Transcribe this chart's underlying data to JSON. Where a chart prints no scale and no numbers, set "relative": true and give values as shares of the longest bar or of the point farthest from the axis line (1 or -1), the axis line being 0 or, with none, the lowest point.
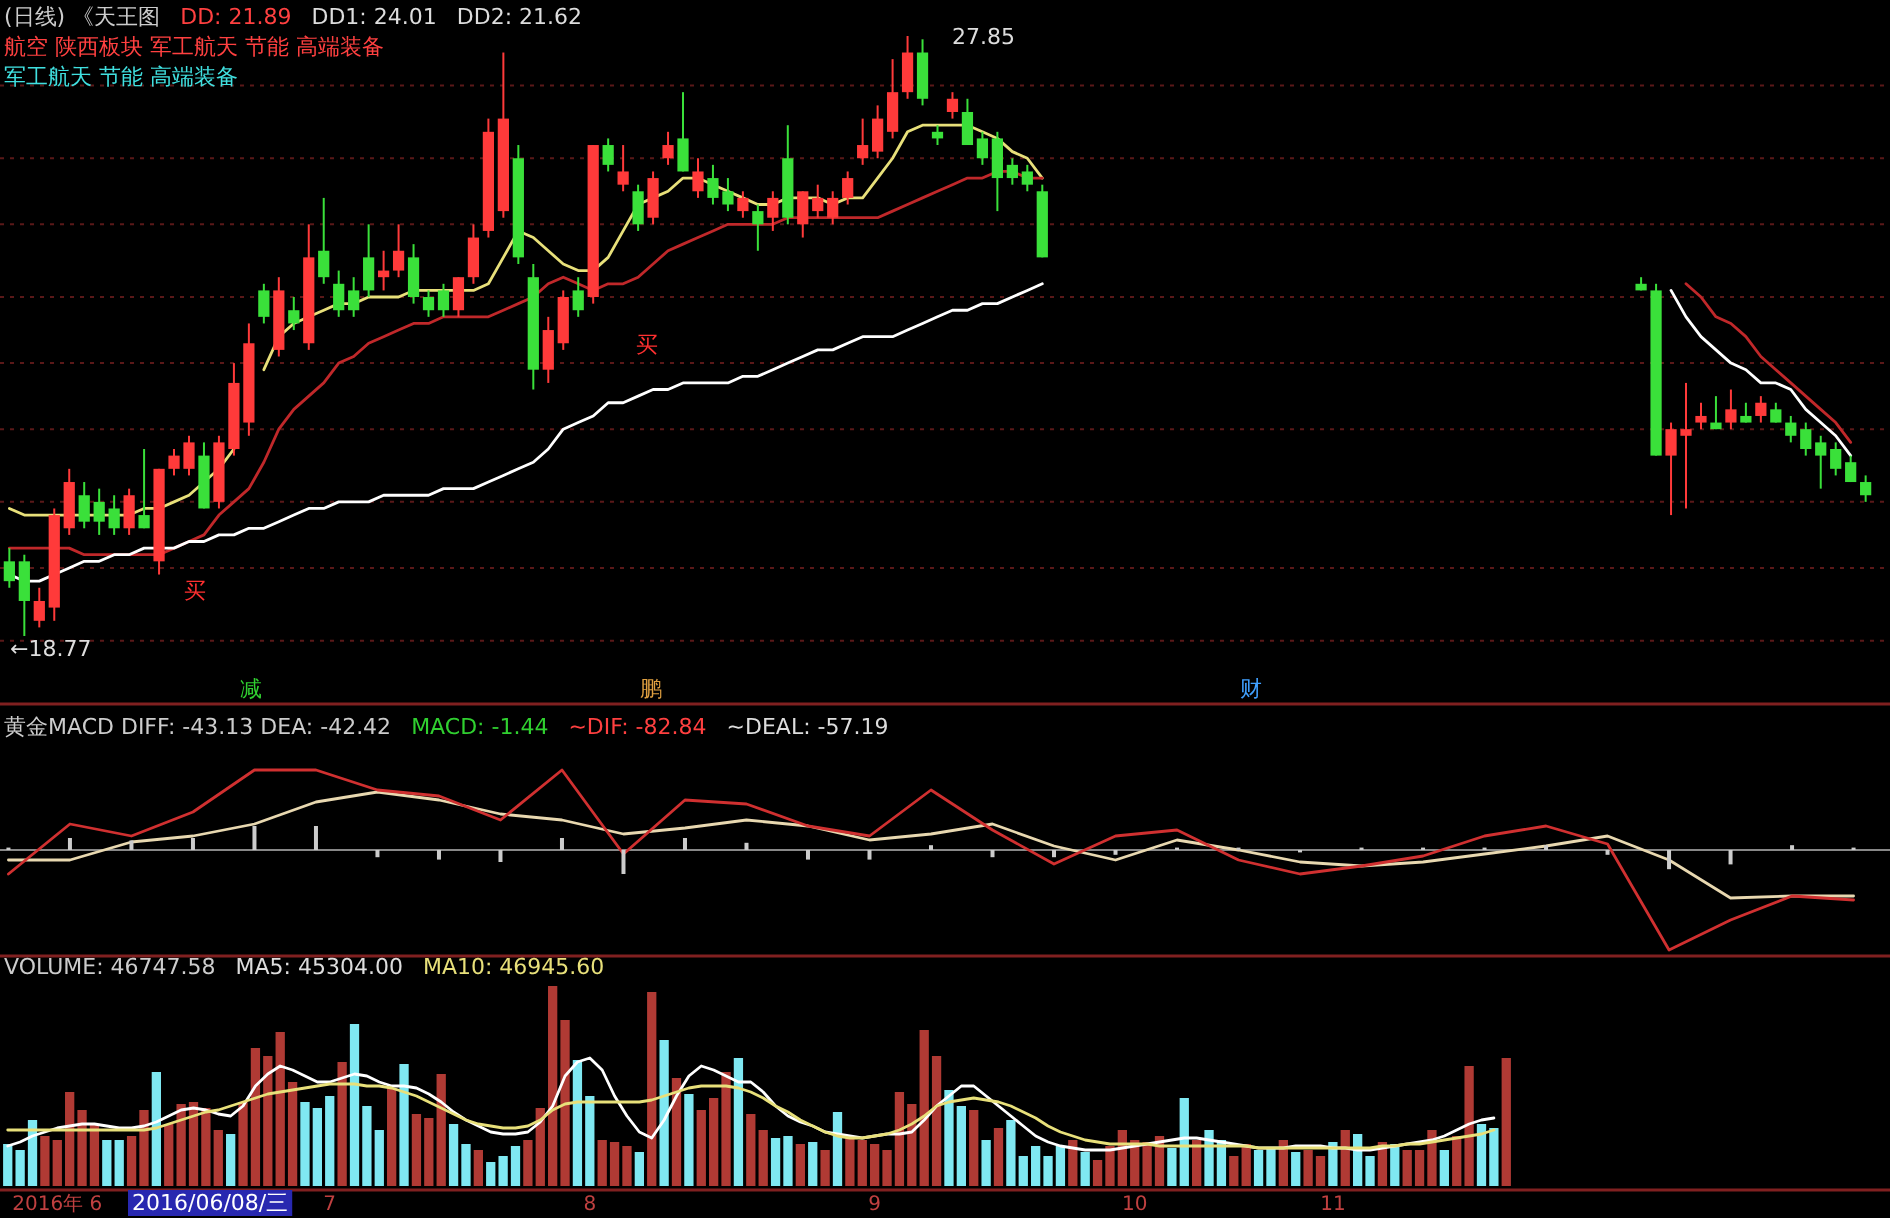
{
  "chart_data": [
    {
      "type": "candlestick",
      "title": "(日线) 《天王图",
      "subtitle": "航空 陕西板块 军工航天 节能 高端装备",
      "categories": [
        null,
        null,
        null,
        null,
        null,
        null,
        null,
        null,
        null,
        null,
        null,
        null,
        null,
        null,
        null,
        null,
        null,
        null,
        null,
        null,
        null,
        null,
        null,
        null,
        null,
        null,
        null,
        null,
        null,
        null,
        null,
        null,
        null,
        null,
        null,
        null,
        null,
        null,
        null,
        null,
        null,
        null,
        null,
        null,
        null,
        null,
        null,
        null,
        null,
        null,
        null,
        null,
        null,
        null,
        null,
        null,
        null,
        null,
        null,
        null,
        null,
        null,
        null,
        null,
        null,
        null,
        null,
        null,
        null,
        null,
        null,
        null,
        null,
        null,
        null,
        null,
        null,
        null,
        null,
        null,
        null,
        null,
        null,
        null,
        null,
        null,
        null,
        null,
        null,
        null,
        null,
        null,
        null,
        null,
        null,
        null,
        null,
        null,
        null,
        null,
        null,
        null,
        null,
        null,
        null,
        null,
        null,
        null,
        null,
        null,
        null,
        null,
        null,
        null,
        null,
        null,
        null,
        null,
        null,
        null,
        null,
        null,
        null,
        null,
        null
      ],
      "ohlc": [
        [
          19.9,
          20.1,
          19.5,
          19.6
        ],
        [
          19.9,
          20.0,
          18.77,
          19.3
        ],
        [
          19.0,
          19.5,
          18.9,
          19.3
        ],
        [
          19.2,
          20.7,
          19.0,
          20.6
        ],
        [
          20.4,
          21.3,
          20.3,
          21.1
        ],
        [
          20.9,
          21.1,
          20.4,
          20.5
        ],
        [
          20.8,
          21.0,
          20.3,
          20.5
        ],
        [
          20.7,
          20.9,
          20.3,
          20.4
        ],
        [
          20.4,
          21.0,
          20.3,
          20.9
        ],
        [
          20.6,
          21.6,
          20.4,
          20.4
        ],
        [
          19.9,
          21.3,
          19.7,
          21.3
        ],
        [
          21.3,
          21.6,
          21.2,
          21.5
        ],
        [
          21.3,
          21.8,
          21.2,
          21.7
        ],
        [
          21.5,
          21.7,
          20.7,
          20.7
        ],
        [
          20.8,
          21.8,
          20.7,
          21.7
        ],
        [
          21.6,
          22.9,
          21.5,
          22.6
        ],
        [
          22.0,
          23.5,
          21.8,
          23.2
        ],
        [
          24.0,
          24.1,
          23.5,
          23.6
        ],
        [
          23.1,
          24.2,
          23.0,
          24.0
        ],
        [
          23.7,
          23.9,
          23.4,
          23.5
        ],
        [
          23.2,
          25.0,
          23.1,
          24.5
        ],
        [
          24.6,
          25.4,
          24.1,
          24.2
        ],
        [
          24.1,
          24.3,
          23.6,
          23.7
        ],
        [
          24.0,
          24.2,
          23.6,
          23.7
        ],
        [
          24.5,
          25.0,
          23.9,
          24.0
        ],
        [
          24.2,
          24.6,
          24.0,
          24.3
        ],
        [
          24.3,
          25.0,
          24.2,
          24.6
        ],
        [
          24.5,
          24.7,
          23.8,
          23.9
        ],
        [
          23.9,
          24.0,
          23.6,
          23.7
        ],
        [
          24.0,
          24.1,
          23.6,
          23.7
        ],
        [
          23.7,
          24.2,
          23.6,
          24.2
        ],
        [
          24.2,
          25.0,
          24.1,
          24.8
        ],
        [
          24.9,
          26.6,
          24.8,
          26.4
        ],
        [
          25.2,
          27.6,
          25.1,
          26.6
        ],
        [
          26.0,
          26.2,
          24.4,
          24.5
        ],
        [
          24.2,
          24.4,
          22.5,
          22.8
        ],
        [
          22.8,
          23.6,
          22.6,
          23.4
        ],
        [
          23.2,
          24.0,
          23.1,
          23.9
        ],
        [
          24.0,
          24.2,
          23.6,
          23.7
        ],
        [
          23.9,
          26.2,
          23.8,
          26.2
        ],
        [
          26.2,
          26.3,
          25.8,
          25.9
        ],
        [
          25.6,
          26.2,
          25.5,
          25.8
        ],
        [
          25.5,
          25.6,
          24.9,
          25.0
        ],
        [
          25.1,
          25.8,
          25.0,
          25.7
        ],
        [
          26.0,
          26.4,
          25.9,
          26.2
        ],
        [
          26.3,
          27.0,
          25.8,
          25.8
        ],
        [
          25.5,
          26.0,
          25.4,
          25.8
        ],
        [
          25.7,
          25.9,
          25.3,
          25.4
        ],
        [
          25.5,
          25.7,
          25.2,
          25.3
        ],
        [
          25.2,
          25.5,
          25.1,
          25.4
        ],
        [
          25.2,
          25.3,
          24.6,
          25.0
        ],
        [
          25.1,
          25.5,
          24.9,
          25.4
        ],
        [
          26.0,
          26.5,
          25.0,
          25.1
        ],
        [
          25.0,
          25.5,
          24.8,
          25.5
        ],
        [
          25.2,
          25.6,
          25.1,
          25.4
        ],
        [
          25.1,
          25.5,
          25.0,
          25.4
        ],
        [
          25.4,
          25.8,
          25.3,
          25.7
        ],
        [
          26.0,
          26.6,
          25.9,
          26.2
        ],
        [
          26.1,
          26.8,
          26.0,
          26.6
        ],
        [
          26.4,
          27.5,
          26.3,
          27.0
        ],
        [
          27.0,
          27.85,
          26.9,
          27.6
        ],
        [
          27.6,
          27.8,
          26.8,
          26.9
        ],
        [
          26.4,
          26.5,
          26.2,
          26.3
        ],
        [
          26.7,
          27.0,
          26.6,
          26.9
        ],
        [
          26.7,
          26.9,
          26.2,
          26.2
        ],
        [
          26.3,
          26.4,
          25.9,
          26.0
        ],
        [
          26.3,
          26.4,
          25.2,
          25.7
        ],
        [
          25.9,
          26.0,
          25.6,
          25.7
        ],
        [
          25.8,
          25.9,
          25.5,
          25.6
        ],
        [
          25.5,
          25.6,
          24.5,
          24.5
        ],
        null,
        null,
        null,
        null,
        null,
        null,
        null,
        null,
        null,
        null,
        null,
        null,
        null,
        null,
        null,
        null,
        null,
        null,
        null,
        null,
        null,
        null,
        null,
        null,
        null,
        null,
        null,
        null,
        null,
        null,
        null,
        null,
        null,
        null,
        null,
        null,
        null,
        null,
        null,
        [
          24.1,
          24.2,
          24.0,
          24.0
        ],
        [
          24.0,
          24.1,
          21.5,
          21.5
        ],
        [
          21.5,
          22.0,
          20.6,
          21.9
        ],
        [
          21.8,
          22.6,
          20.7,
          21.9
        ],
        [
          22.0,
          22.3,
          21.9,
          22.1
        ],
        [
          22.0,
          22.4,
          21.9,
          21.9
        ],
        [
          22.0,
          22.5,
          21.9,
          22.2
        ],
        [
          22.1,
          22.3,
          22.0,
          22.0
        ],
        [
          22.1,
          22.4,
          22.0,
          22.3
        ],
        [
          22.2,
          22.3,
          22.0,
          22.0
        ],
        [
          22.0,
          22.1,
          21.7,
          21.8
        ],
        [
          21.9,
          22.0,
          21.5,
          21.6
        ],
        [
          21.7,
          21.8,
          21.0,
          21.5
        ],
        [
          21.6,
          21.7,
          21.2,
          21.3
        ],
        [
          21.4,
          21.5,
          21.1,
          21.1
        ],
        [
          21.1,
          21.2,
          20.8,
          20.9
        ]
      ],
      "series": [
        {
          "type": "line",
          "color": "#e8e07a",
          "values": [
            20.7,
            20.6,
            20.6,
            20.6,
            20.6,
            20.6,
            20.6,
            20.6,
            20.6,
            20.7,
            20.7,
            20.8,
            20.9,
            21.1,
            21.3,
            21.6,
            null,
            22.8,
            23.3,
            23.5,
            23.6,
            23.7,
            23.8,
            23.8,
            23.9,
            23.9,
            23.9,
            24.0,
            24.0,
            24.0,
            24.0,
            24.0,
            24.1,
            24.5,
            24.9,
            24.8,
            24.6,
            24.4,
            24.3,
            24.3,
            24.5,
            24.9,
            25.3,
            25.4,
            25.5,
            25.7,
            25.7,
            25.6,
            25.5,
            25.4,
            25.3,
            25.3,
            25.4,
            25.4,
            25.4,
            25.3,
            25.4,
            25.4,
            25.7,
            26.0,
            26.4,
            26.5,
            26.5,
            26.5,
            26.5,
            26.4,
            26.3,
            26.1,
            26.0,
            25.7,
            null,
            null,
            null,
            null,
            null,
            null,
            null,
            null,
            null,
            null,
            null,
            null,
            null,
            null,
            null,
            null,
            null,
            null,
            null,
            null,
            null,
            null,
            null,
            null,
            null,
            null,
            null,
            null,
            null,
            null,
            null,
            null,
            null,
            null,
            null,
            null,
            null,
            null,
            null,
            null,
            null,
            null,
            null,
            null,
            null,
            null,
            null,
            null,
            null,
            null,
            null,
            null,
            null,
            null,
            null
          ]
        },
        {
          "type": "line",
          "color": "#c0282a",
          "values": [
            20.1,
            20.1,
            20.1,
            20.1,
            20.1,
            20.0,
            20.0,
            20.0,
            20.0,
            20.0,
            20.0,
            20.1,
            20.2,
            20.3,
            20.6,
            20.8,
            21.0,
            21.4,
            21.9,
            22.2,
            22.4,
            22.6,
            22.9,
            23.0,
            23.2,
            23.3,
            23.4,
            23.5,
            23.5,
            23.6,
            23.6,
            23.6,
            23.6,
            23.7,
            23.8,
            23.9,
            24.1,
            24.2,
            24.1,
            24.0,
            24.1,
            24.1,
            24.2,
            24.4,
            24.6,
            24.7,
            24.8,
            24.9,
            25.0,
            25.0,
            25.0,
            25.0,
            25.1,
            25.1,
            25.1,
            25.1,
            25.1,
            25.1,
            25.1,
            25.2,
            25.3,
            25.4,
            25.5,
            25.6,
            25.7,
            25.7,
            25.8,
            25.8,
            25.7,
            25.7,
            null,
            null,
            null,
            null,
            null,
            null,
            null,
            null,
            null,
            null,
            null,
            null,
            null,
            null,
            null,
            null,
            null,
            null,
            null,
            null,
            null,
            null,
            null,
            null,
            null,
            null,
            null,
            null,
            null,
            null,
            null,
            null,
            null,
            null,
            null,
            null,
            null,
            null,
            null,
            null,
            null,
            null,
            24.1,
            23.9,
            23.6,
            23.5,
            23.3,
            23.0,
            22.8,
            22.6,
            22.4,
            22.2,
            22.0,
            21.7,
            null
          ]
        },
        {
          "type": "line",
          "color": "#ffffff",
          "values": [
            19.7,
            19.6,
            19.6,
            19.7,
            19.8,
            19.9,
            19.9,
            20.0,
            20.0,
            20.1,
            20.1,
            20.1,
            20.2,
            20.2,
            20.3,
            20.3,
            20.4,
            20.4,
            20.5,
            20.6,
            20.7,
            20.7,
            20.8,
            20.8,
            20.8,
            20.9,
            20.9,
            20.9,
            20.9,
            21.0,
            21.0,
            21.0,
            21.1,
            21.2,
            21.3,
            21.4,
            21.6,
            21.9,
            22.0,
            22.1,
            22.3,
            22.3,
            22.4,
            22.5,
            22.5,
            22.6,
            22.6,
            22.6,
            22.6,
            22.7,
            22.7,
            22.8,
            22.9,
            23.0,
            23.1,
            23.1,
            23.2,
            23.3,
            23.3,
            23.3,
            23.4,
            23.5,
            23.6,
            23.7,
            23.7,
            23.8,
            23.8,
            23.9,
            24.0,
            24.1,
            null,
            null,
            null,
            null,
            null,
            null,
            null,
            null,
            null,
            null,
            null,
            null,
            null,
            null,
            null,
            null,
            null,
            null,
            null,
            null,
            null,
            null,
            null,
            null,
            null,
            null,
            null,
            null,
            null,
            null,
            null,
            null,
            null,
            null,
            null,
            null,
            null,
            null,
            null,
            null,
            null,
            24.0,
            23.6,
            23.3,
            23.1,
            22.9,
            22.8,
            22.6,
            22.6,
            22.5,
            22.2,
            22.0,
            21.8,
            21.5,
            null
          ]
        }
      ],
      "yticks": [
        {
          "value": 18.7,
          "label": null
        },
        {
          "value": 19.8,
          "label": null
        },
        {
          "value": 20.8,
          "label": null
        },
        {
          "value": 21.9,
          "label": null
        },
        {
          "value": 22.9,
          "label": null
        },
        {
          "value": 23.9,
          "label": null
        },
        {
          "value": 25.0,
          "label": null
        },
        {
          "value": 26.0,
          "label": null
        },
        {
          "value": 27.1,
          "label": null
        }
      ],
      "grid": "y",
      "tick_labels": false,
      "annotations": [
        "←18.77",
        "27.85",
        "DD: 21.89",
        "DD1: 24.01",
        "DD2: 21.62",
        "军工航天 节能 高端装备",
        "买",
        "买",
        "减",
        "鹏",
        "财"
      ]
    },
    {
      "type": "line",
      "title": "黄金MACD DIFF: -43.13 DEA: -42.42",
      "relative": true,
      "tick_labels": false,
      "categories": [
        null,
        null,
        null,
        null,
        null,
        null,
        null,
        null,
        null,
        null,
        null,
        null,
        null,
        null,
        null,
        null,
        null,
        null,
        null,
        null,
        null,
        null,
        null,
        null,
        null,
        null,
        null,
        null,
        null,
        null,
        null
      ],
      "series": [
        {
          "color": "#e8d8b0",
          "values": [
            -0.1,
            -0.1,
            0.08,
            0.14,
            0.26,
            0.48,
            0.58,
            0.5,
            0.36,
            0.3,
            0.16,
            0.22,
            0.3,
            0.24,
            0.1,
            0.16,
            0.26,
            0.04,
            -0.1,
            0.1,
            0,
            -0.12,
            -0.16,
            -0.12,
            -0.04,
            0.04,
            0.14,
            -0.1,
            -0.48,
            -0.46,
            -0.46
          ]
        },
        {
          "color": "#d03030",
          "values": [
            -0.24,
            0.26,
            0.14,
            0.38,
            0.8,
            0.8,
            0.6,
            0.54,
            0.3,
            0.8,
            -0.04,
            0.5,
            0.46,
            0.24,
            0.14,
            0.6,
            0.2,
            -0.14,
            0.14,
            0.2,
            -0.1,
            -0.24,
            -0.16,
            -0.06,
            0.14,
            0.24,
            0.06,
            -1,
            -0.7,
            -0.46,
            -0.5
          ]
        }
      ],
      "annotations": [
        "MACD: -1.44",
        "~DIF: -82.84",
        "~DEAL: -57.19"
      ]
    },
    {
      "type": "bar",
      "title": "VOLUME: 46747.58",
      "relative": true,
      "tick_labels": "x",
      "categories": [
        null,
        null,
        null,
        null,
        "2016年 6",
        null,
        null,
        null,
        null,
        null,
        null,
        null,
        null,
        null,
        null,
        null,
        null,
        null,
        null,
        null,
        null,
        null,
        null,
        null,
        null,
        null,
        "7",
        null,
        null,
        null,
        null,
        null,
        null,
        null,
        null,
        null,
        null,
        null,
        null,
        null,
        null,
        null,
        null,
        null,
        null,
        null,
        null,
        "8",
        null,
        null,
        null,
        null,
        null,
        null,
        null,
        null,
        null,
        null,
        null,
        null,
        null,
        null,
        null,
        null,
        null,
        null,
        null,
        null,
        null,
        null,
        "9",
        null,
        null,
        null,
        null,
        null,
        null,
        null,
        null,
        null,
        null,
        null,
        null,
        null,
        null,
        null,
        null,
        null,
        null,
        null,
        null,
        "10",
        null,
        null,
        null,
        null,
        null,
        null,
        null,
        null,
        null,
        null,
        null,
        null,
        null,
        null,
        null,
        "11",
        null,
        null,
        null,
        null,
        null,
        null,
        null,
        null,
        null,
        null,
        null,
        null,
        null,
        null
      ],
      "series": [
        {
          "type": "bar",
          "values": [
            0.21,
            0.18,
            0.33,
            0.25,
            0.23,
            0.47,
            0.38,
            0.31,
            0.23,
            0.23,
            0.25,
            0.38,
            0.57,
            0.31,
            0.41,
            0.42,
            0.39,
            0.28,
            0.26,
            0.42,
            0.69,
            0.65,
            0.77,
            0.52,
            0.42,
            0.39,
            0.45,
            0.62,
            0.81,
            0.4,
            0.28,
            0.49,
            0.61,
            0.36,
            0.34,
            0.56,
            0.31,
            0.21,
            0.18,
            0.12,
            0.15,
            0.2,
            0.23,
            0.39,
            1.0,
            0.83,
            0.63,
            0.45,
            0.23,
            0.22,
            0.2,
            0.17,
            0.97,
            0.73,
            0.54,
            0.46,
            0.38,
            0.44,
            0.57,
            0.64,
            0.36,
            0.28,
            0.24,
            0.25,
            0.21,
            0.22,
            0.18,
            0.37,
            0.25,
            0.23,
            0.21,
            0.18,
            0.47,
            0.41,
            0.78,
            0.65,
            0.48,
            0.4,
            0.38,
            0.23,
            0.29,
            0.33,
            0.15,
            0.2,
            0.15,
            0.2,
            0.23,
            0.17,
            0.13,
            0.2,
            0.28,
            0.23,
            0.22,
            0.25,
            0.19,
            0.44,
            0.23,
            0.28,
            0.23,
            0.15,
            0.21,
            0.18,
            0.19,
            0.23,
            0.17,
            0.18,
            0.15,
            0.22,
            0.28,
            0.26,
            0.15,
            0.22,
            0.21,
            0.18,
            0.18,
            0.28,
            0.18,
            0.25,
            0.6,
            0.31,
            0.29,
            0.64
          ],
          "colors": [
            "#7fe8f2",
            "#7fe8f2",
            "#7fe8f2",
            "#b03a34",
            "#b03a34",
            "#b03a34",
            "#b03a34",
            "#b03a34",
            "#7fe8f2",
            "#7fe8f2",
            "#b03a34",
            "#b03a34",
            "#7fe8f2",
            "#b03a34",
            "#b03a34",
            "#b03a34",
            "#b03a34",
            "#b03a34",
            "#7fe8f2",
            "#b03a34",
            "#b03a34",
            "#b03a34",
            "#b03a34",
            "#b03a34",
            "#7fe8f2",
            "#7fe8f2",
            "#7fe8f2",
            "#b03a34",
            "#7fe8f2",
            "#7fe8f2",
            "#7fe8f2",
            "#b03a34",
            "#7fe8f2",
            "#b03a34",
            "#b03a34",
            "#b03a34",
            "#7fe8f2",
            "#7fe8f2",
            "#b03a34",
            "#7fe8f2",
            "#7fe8f2",
            "#7fe8f2",
            "#b03a34",
            "#b03a34",
            "#b03a34",
            "#b03a34",
            "#7fe8f2",
            "#7fe8f2",
            "#b03a34",
            "#b03a34",
            "#b03a34",
            "#7fe8f2",
            "#b03a34",
            "#7fe8f2",
            "#b03a34",
            "#7fe8f2",
            "#b03a34",
            "#b03a34",
            "#b03a34",
            "#7fe8f2",
            "#b03a34",
            "#b03a34",
            "#7fe8f2",
            "#7fe8f2",
            "#b03a34",
            "#7fe8f2",
            "#b03a34",
            "#7fe8f2",
            "#b03a34",
            "#b03a34",
            "#b03a34",
            "#b03a34",
            "#b03a34",
            "#b03a34",
            "#b03a34",
            "#b03a34",
            "#7fe8f2",
            "#7fe8f2",
            "#b03a34",
            "#7fe8f2",
            "#b03a34",
            "#7fe8f2",
            "#7fe8f2",
            "#7fe8f2",
            "#7fe8f2",
            "#7fe8f2",
            "#b03a34",
            "#7fe8f2",
            "#b03a34",
            "#b03a34",
            "#b03a34",
            "#b03a34",
            "#b03a34",
            "#b03a34",
            "#7fe8f2",
            "#7fe8f2",
            "#b03a34",
            "#7fe8f2",
            "#7fe8f2",
            "#b03a34",
            "#b03a34",
            "#7fe8f2",
            "#7fe8f2",
            "#b03a34",
            "#7fe8f2",
            "#b03a34",
            "#b03a34",
            "#7fe8f2",
            "#b03a34",
            "#7fe8f2",
            "#7fe8f2",
            "#b03a34",
            "#7fe8f2",
            "#b03a34",
            "#b03a34",
            "#b03a34",
            "#7fe8f2",
            "#b03a34",
            "#b03a34",
            "#7fe8f2",
            "#7fe8f2",
            "#b03a34"
          ]
        },
        {
          "type": "line",
          "color": "#ffffff",
          "values": [
            0.2,
            0.22,
            0.25,
            0.27,
            0.29,
            0.3,
            0.31,
            0.31,
            0.3,
            0.29,
            0.29,
            0.3,
            0.32,
            0.35,
            0.38,
            0.39,
            0.38,
            0.36,
            0.35,
            0.4,
            0.5,
            0.56,
            0.6,
            0.58,
            0.55,
            0.52,
            0.52,
            0.54,
            0.56,
            0.55,
            0.52,
            0.5,
            0.5,
            0.49,
            0.46,
            0.42,
            0.37,
            0.33,
            0.3,
            0.27,
            0.26,
            0.26,
            0.27,
            0.32,
            0.4,
            0.55,
            0.62,
            0.64,
            0.58,
            0.45,
            0.35,
            0.27,
            0.24,
            0.33,
            0.45,
            0.55,
            0.6,
            0.58,
            0.55,
            0.52,
            0.52,
            0.47,
            0.4,
            0.35,
            0.32,
            0.3,
            0.27,
            0.26,
            0.25,
            0.24,
            0.25,
            0.26,
            0.26,
            0.27,
            0.33,
            0.4,
            0.45,
            0.5,
            0.5,
            0.45,
            0.4,
            0.35,
            0.3,
            0.25,
            0.22,
            0.2,
            0.19,
            0.18,
            0.18,
            0.18,
            0.19,
            0.2,
            0.21,
            0.22,
            0.23,
            0.24,
            0.24,
            0.23,
            0.22,
            0.21,
            0.2,
            0.19,
            0.19,
            0.19,
            0.2,
            0.2,
            0.2,
            0.19,
            0.19,
            0.18,
            0.18,
            0.19,
            0.2,
            0.21,
            0.22,
            0.23,
            0.25,
            0.28,
            0.31,
            0.33,
            0.34,
            null
          ]
        },
        {
          "type": "line",
          "color": "#e8e07a",
          "values": [
            0.28,
            0.28,
            0.28,
            0.28,
            0.28,
            0.28,
            0.28,
            0.28,
            0.28,
            0.28,
            0.28,
            0.28,
            0.29,
            0.31,
            0.33,
            0.35,
            0.37,
            0.38,
            0.4,
            0.42,
            0.44,
            0.46,
            0.47,
            0.48,
            0.49,
            0.5,
            0.51,
            0.51,
            0.51,
            0.5,
            0.5,
            0.49,
            0.47,
            0.45,
            0.42,
            0.39,
            0.36,
            0.33,
            0.31,
            0.3,
            0.29,
            0.29,
            0.3,
            0.33,
            0.38,
            0.41,
            0.42,
            0.42,
            0.42,
            0.42,
            0.42,
            0.42,
            0.43,
            0.45,
            0.47,
            0.49,
            0.5,
            0.5,
            0.5,
            0.49,
            0.47,
            0.44,
            0.4,
            0.37,
            0.33,
            0.3,
            0.27,
            0.25,
            0.24,
            0.24,
            0.25,
            0.26,
            0.28,
            0.31,
            0.35,
            0.4,
            0.42,
            0.43,
            0.44,
            0.43,
            0.42,
            0.4,
            0.37,
            0.34,
            0.3,
            0.27,
            0.25,
            0.23,
            0.22,
            0.21,
            0.21,
            0.21,
            0.21,
            0.2,
            0.2,
            0.2,
            0.2,
            0.2,
            0.2,
            0.2,
            0.2,
            0.19,
            0.19,
            0.19,
            0.19,
            0.19,
            0.19,
            0.19,
            0.19,
            0.19,
            0.19,
            0.2,
            0.2,
            0.21,
            0.21,
            0.22,
            0.23,
            0.24,
            0.25,
            0.26,
            0.28,
            null
          ]
        }
      ],
      "annotations": [
        "MA5: 45304.00",
        "MA10: 46945.60",
        "2016/06/08/三"
      ]
    },
    {
      "type": "bar",
      "relative": true,
      "tick_labels": false,
      "categories": [
        null,
        null,
        null,
        null,
        null,
        null,
        null,
        null,
        null,
        null,
        null,
        null,
        null,
        null,
        null,
        null,
        null,
        null,
        null,
        null,
        null,
        null,
        null,
        null,
        null,
        null,
        null,
        null,
        null,
        null,
        null
      ],
      "series": [
        {
          "color": "#cccccc",
          "values": [
            0.1,
            0.5,
            0.4,
            0.5,
            1,
            1,
            -0.3,
            -0.4,
            -0.5,
            0.5,
            -1,
            0.5,
            0.3,
            -0.4,
            -0.4,
            0.2,
            -0.3,
            -0.3,
            -0.2,
            0.1,
            0.1,
            -0.1,
            0.1,
            0.1,
            0.1,
            0.2,
            -0.2,
            -0.8,
            -0.6,
            0.2,
            0.1
          ]
        }
      ]
    }
  ]
}
